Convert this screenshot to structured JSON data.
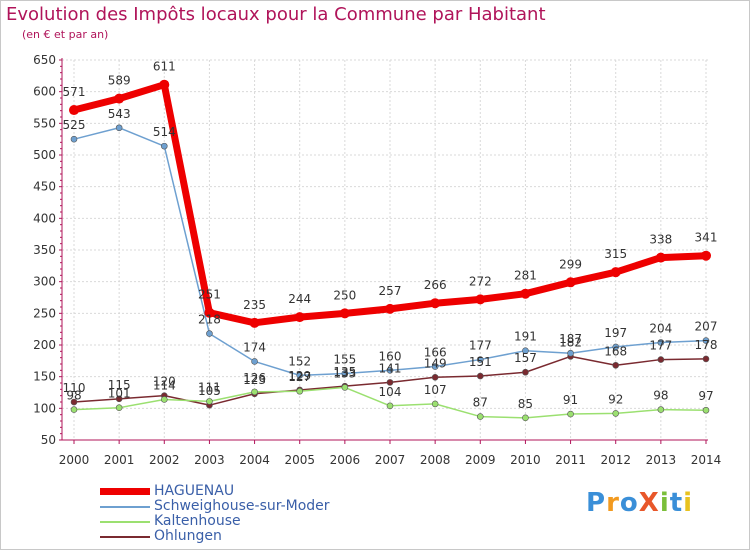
{
  "header": {
    "title": "Evolution des Impôts locaux pour la Commune par Habitant",
    "subtitle": "(en € et par an)"
  },
  "logo": {
    "text": "ProXiti"
  },
  "colors": {
    "title": "#b0145a",
    "axis": "#b0145a",
    "grid": "#d9d9d9",
    "legend_text": "#3a5fa8"
  },
  "chart_data": {
    "type": "line",
    "title": "Evolution des Impôts locaux pour la Commune par Habitant",
    "subtitle": "(en € et par an)",
    "xlabel": "",
    "ylabel": "",
    "categories": [
      "2000",
      "2001",
      "2002",
      "2003",
      "2004",
      "2005",
      "2006",
      "2007",
      "2008",
      "2009",
      "2010",
      "2011",
      "2012",
      "2013",
      "2014"
    ],
    "ylim": [
      50,
      650
    ],
    "yticks": [
      50,
      100,
      150,
      200,
      250,
      300,
      350,
      400,
      450,
      500,
      550,
      600,
      650
    ],
    "grid": true,
    "legend_position": "bottom-left",
    "series": [
      {
        "name": "HAGUENAU",
        "color": "#ee0000",
        "width": 7,
        "values": [
          571,
          589,
          611,
          251,
          235,
          244,
          250,
          257,
          266,
          272,
          281,
          299,
          315,
          338,
          341
        ]
      },
      {
        "name": "Schweighouse-sur-Moder",
        "color": "#6ea0d0",
        "width": 1.5,
        "values": [
          525,
          543,
          514,
          218,
          174,
          152,
          155,
          160,
          166,
          177,
          191,
          187,
          197,
          204,
          207
        ]
      },
      {
        "name": "Kaltenhouse",
        "color": "#9be070",
        "width": 1.5,
        "values": [
          98,
          101,
          114,
          111,
          126,
          127,
          133,
          104,
          107,
          87,
          85,
          91,
          92,
          98,
          97
        ]
      },
      {
        "name": "Ohlungen",
        "color": "#7a2a30",
        "width": 1.5,
        "values": [
          110,
          115,
          120,
          105,
          123,
          129,
          135,
          141,
          149,
          151,
          157,
          182,
          168,
          177,
          178
        ]
      }
    ]
  }
}
